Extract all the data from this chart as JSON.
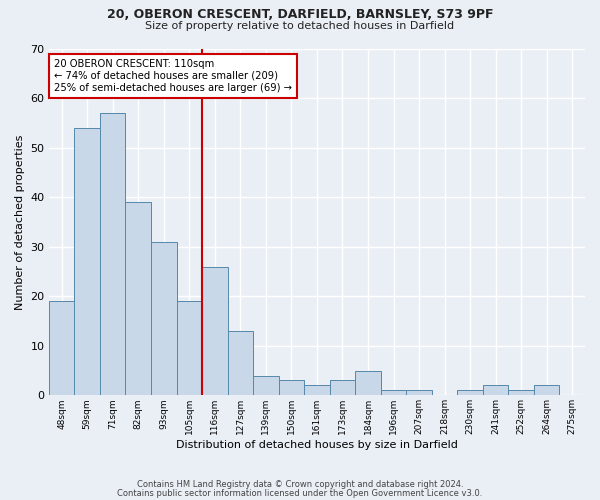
{
  "title1": "20, OBERON CRESCENT, DARFIELD, BARNSLEY, S73 9PF",
  "title2": "Size of property relative to detached houses in Darfield",
  "xlabel": "Distribution of detached houses by size in Darfield",
  "ylabel": "Number of detached properties",
  "footnote1": "Contains HM Land Registry data © Crown copyright and database right 2024.",
  "footnote2": "Contains public sector information licensed under the Open Government Licence v3.0.",
  "annotation_line1": "20 OBERON CRESCENT: 110sqm",
  "annotation_line2": "← 74% of detached houses are smaller (209)",
  "annotation_line3": "25% of semi-detached houses are larger (69) →",
  "bar_labels": [
    "48sqm",
    "59sqm",
    "71sqm",
    "82sqm",
    "93sqm",
    "105sqm",
    "116sqm",
    "127sqm",
    "139sqm",
    "150sqm",
    "161sqm",
    "173sqm",
    "184sqm",
    "196sqm",
    "207sqm",
    "218sqm",
    "230sqm",
    "241sqm",
    "252sqm",
    "264sqm",
    "275sqm"
  ],
  "bar_values": [
    19,
    54,
    57,
    39,
    31,
    19,
    26,
    13,
    4,
    3,
    2,
    3,
    5,
    1,
    1,
    0,
    1,
    2,
    1,
    2,
    0
  ],
  "bar_color": "#c8d8e8",
  "bar_edge_color": "#5588aa",
  "bg_color": "#eaeff6",
  "grid_color": "#ffffff",
  "vline_color": "#cc0000",
  "annotation_box_color": "#ffffff",
  "annotation_box_edge": "#cc0000",
  "vline_index": 5.5,
  "ylim": [
    0,
    70
  ],
  "yticks": [
    0,
    10,
    20,
    30,
    40,
    50,
    60,
    70
  ]
}
